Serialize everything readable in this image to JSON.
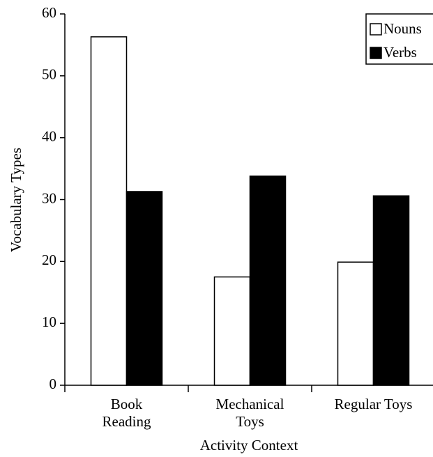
{
  "chart_data": {
    "type": "bar",
    "x_label": "Activity Context",
    "y_label": "Vocabulary Types",
    "categories": [
      "Book\nReading",
      "Mechanical\nToys",
      "Regular Toys"
    ],
    "series": [
      {
        "name": "Nouns",
        "color": "#ffffff",
        "values": [
          56.3,
          17.5,
          19.9
        ]
      },
      {
        "name": "Verbs",
        "color": "#000000",
        "values": [
          31.3,
          33.8,
          30.6
        ]
      }
    ],
    "ylim": [
      0,
      60
    ],
    "yticks": [
      0,
      10,
      20,
      30,
      40,
      50,
      60
    ],
    "legend": "upper right",
    "grid": false
  }
}
